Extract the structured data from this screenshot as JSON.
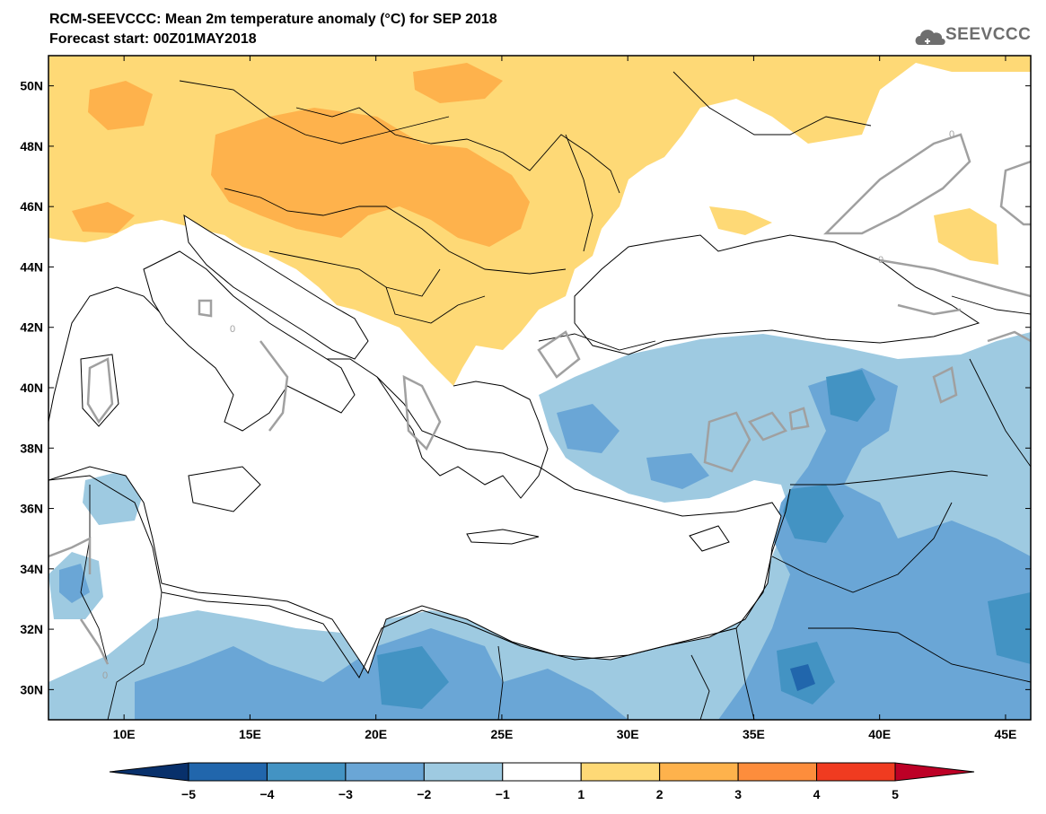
{
  "header": {
    "title": "RCM-SEEVCCC: Mean 2m temperature anomaly (°C) for SEP 2018",
    "subtitle": "Forecast start: 00Z01MAY2018",
    "logo_text": "SEEVCCC"
  },
  "map": {
    "lon_range": [
      7,
      46
    ],
    "lat_range": [
      29,
      51
    ],
    "lat_ticks": [
      "50N",
      "48N",
      "46N",
      "44N",
      "42N",
      "40N",
      "38N",
      "36N",
      "34N",
      "32N",
      "30N"
    ],
    "lon_ticks": [
      "10E",
      "15E",
      "20E",
      "25E",
      "30E",
      "35E",
      "40E",
      "45E"
    ],
    "contour_label": "0"
  },
  "colorbar": {
    "labels": [
      "-5",
      "-4",
      "-3",
      "-2",
      "-1",
      "1",
      "2",
      "3",
      "4",
      "5"
    ],
    "colors": [
      "#08306b",
      "#2166ac",
      "#4393c3",
      "#6aa6d6",
      "#9ecae1",
      "#ffffff",
      "#fed976",
      "#feb24c",
      "#fd8d3c",
      "#f03b20",
      "#bd0026"
    ]
  },
  "colors": {
    "warm1": "#fed976",
    "warm2": "#feb24c",
    "warm3": "#fd8d3c",
    "cool1": "#9ecae1",
    "cool2": "#6aa6d6",
    "cool3": "#4393c3",
    "cool4": "#2166ac",
    "contour": "#a0a0a0",
    "coast": "#000000"
  }
}
